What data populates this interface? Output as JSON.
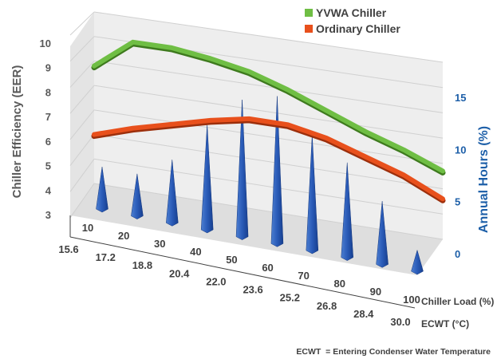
{
  "chart_data": {
    "type": "line",
    "subtype": "3d-line-with-cone-bars",
    "categories_chiller_load": [
      "10",
      "20",
      "30",
      "40",
      "50",
      "60",
      "70",
      "80",
      "90",
      "100"
    ],
    "categories_ecwt": [
      "15.6",
      "17.2",
      "18.8",
      "20.4",
      "22.0",
      "23.6",
      "25.2",
      "26.8",
      "28.4",
      "30.0"
    ],
    "series": [
      {
        "name": "YVWA Chiller",
        "axis": "left",
        "color": "#6fbe44",
        "values": [
          7.8,
          9.0,
          9.0,
          8.8,
          8.5,
          8.0,
          7.4,
          6.8,
          6.3,
          5.7
        ]
      },
      {
        "name": "Ordinary Chiller",
        "axis": "left",
        "color": "#e8501c",
        "values": [
          5.0,
          5.5,
          5.9,
          6.3,
          6.6,
          6.6,
          6.3,
          5.8,
          5.3,
          4.6
        ]
      },
      {
        "name": "Annual Hours",
        "axis": "right",
        "type": "cone",
        "color": "#1f4fa6",
        "values": [
          4,
          4,
          6,
          10,
          13,
          14,
          11,
          9,
          6,
          2
        ]
      }
    ],
    "ylabel_left": "Chiller Efficiency (EER)",
    "ylabel_right": "Annual Hours (%)",
    "xlabel_1": "Chiller Load (%)",
    "xlabel_2": "ECWT (°C)",
    "left_ticks": [
      "3",
      "4",
      "5",
      "6",
      "7",
      "8",
      "9",
      "10"
    ],
    "right_ticks": [
      "0",
      "5",
      "10",
      "15"
    ],
    "ylim_left": [
      3,
      10
    ],
    "ylim_right": [
      0,
      17
    ],
    "legend_position": "top-right",
    "footnote": "ECWT  = Entering Condenser Water Temperature"
  }
}
